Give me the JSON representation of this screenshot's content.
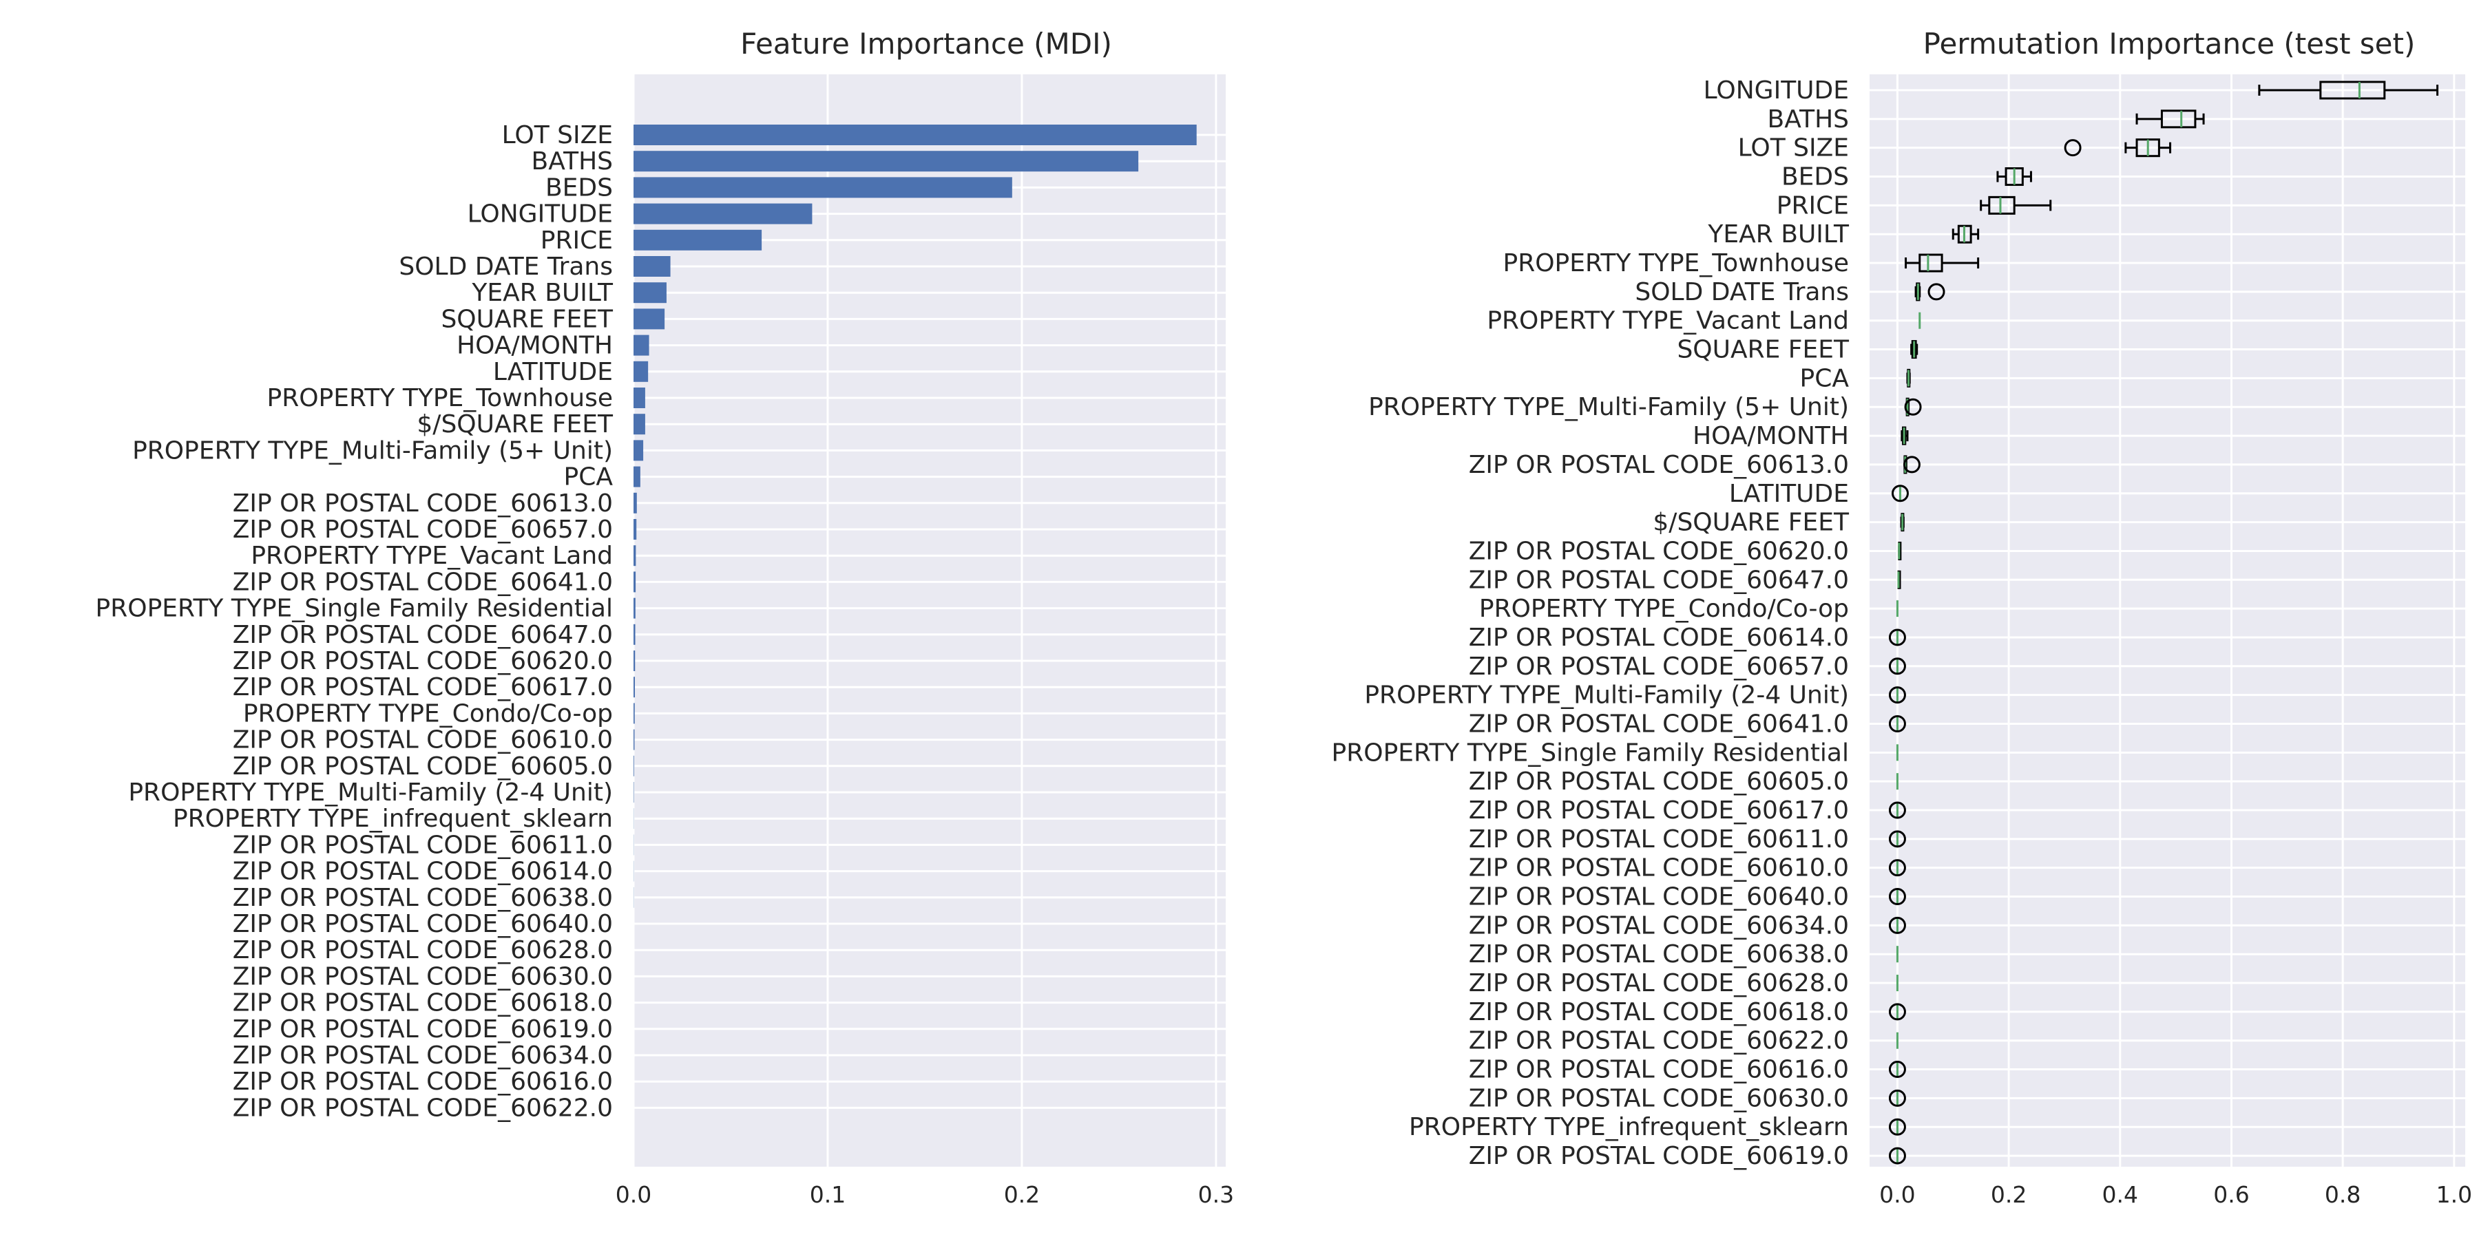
{
  "chart_data": [
    {
      "type": "bar",
      "orientation": "horizontal",
      "title": "Feature Importance (MDI)",
      "xlabel": "",
      "ylabel": "",
      "xlim": [
        0,
        0.305
      ],
      "xticks": [
        "0.0",
        "0.1",
        "0.2",
        "0.3"
      ],
      "grid": true,
      "bar_color": "#4c72b0",
      "background": "#eaeaf2",
      "categories": [
        "LOT SIZE",
        "BATHS",
        "BEDS",
        "LONGITUDE",
        "PRICE",
        "SOLD DATE Trans",
        "YEAR BUILT",
        "SQUARE FEET",
        "HOA/MONTH",
        "LATITUDE",
        "PROPERTY TYPE_Townhouse",
        "$/SQUARE FEET",
        "PROPERTY TYPE_Multi-Family (5+ Unit)",
        "PCA",
        "ZIP OR POSTAL CODE_60613.0",
        "ZIP OR POSTAL CODE_60657.0",
        "PROPERTY TYPE_Vacant Land",
        "ZIP OR POSTAL CODE_60641.0",
        "PROPERTY TYPE_Single Family Residential",
        "ZIP OR POSTAL CODE_60647.0",
        "ZIP OR POSTAL CODE_60620.0",
        "ZIP OR POSTAL CODE_60617.0",
        "PROPERTY TYPE_Condo/Co-op",
        "ZIP OR POSTAL CODE_60610.0",
        "ZIP OR POSTAL CODE_60605.0",
        "PROPERTY TYPE_Multi-Family (2-4 Unit)",
        "PROPERTY TYPE_infrequent_sklearn",
        "ZIP OR POSTAL CODE_60611.0",
        "ZIP OR POSTAL CODE_60614.0",
        "ZIP OR POSTAL CODE_60638.0",
        "ZIP OR POSTAL CODE_60640.0",
        "ZIP OR POSTAL CODE_60628.0",
        "ZIP OR POSTAL CODE_60630.0",
        "ZIP OR POSTAL CODE_60618.0",
        "ZIP OR POSTAL CODE_60619.0",
        "ZIP OR POSTAL CODE_60634.0",
        "ZIP OR POSTAL CODE_60616.0",
        "ZIP OR POSTAL CODE_60622.0"
      ],
      "values": [
        0.29,
        0.26,
        0.195,
        0.092,
        0.066,
        0.019,
        0.017,
        0.016,
        0.008,
        0.0075,
        0.006,
        0.006,
        0.005,
        0.0035,
        0.0017,
        0.0015,
        0.0012,
        0.0011,
        0.001,
        0.0009,
        0.0008,
        0.0007,
        0.0006,
        0.0005,
        0.0003,
        0.0002,
        0.0001,
        0.0001,
        0.0001,
        0.0001,
        0.0,
        0.0,
        0.0,
        0.0,
        0.0,
        0.0,
        0.0,
        0.0
      ]
    },
    {
      "type": "boxplot",
      "orientation": "horizontal",
      "title": "Permutation Importance (test set)",
      "xlabel": "",
      "ylabel": "",
      "xlim": [
        -0.05,
        1.02
      ],
      "xticks": [
        "0.0",
        "0.2",
        "0.4",
        "0.6",
        "0.8",
        "1.0"
      ],
      "grid": true,
      "median_color": "#55a868",
      "background": "#eaeaf2",
      "categories": [
        "LONGITUDE",
        "BATHS",
        "LOT SIZE",
        "BEDS",
        "PRICE",
        "YEAR BUILT",
        "PROPERTY TYPE_Townhouse",
        "SOLD DATE Trans",
        "PROPERTY TYPE_Vacant Land",
        "SQUARE FEET",
        "PCA",
        "PROPERTY TYPE_Multi-Family (5+ Unit)",
        "HOA/MONTH",
        "ZIP OR POSTAL CODE_60613.0",
        "LATITUDE",
        "$/SQUARE FEET",
        "ZIP OR POSTAL CODE_60620.0",
        "ZIP OR POSTAL CODE_60647.0",
        "PROPERTY TYPE_Condo/Co-op",
        "ZIP OR POSTAL CODE_60614.0",
        "ZIP OR POSTAL CODE_60657.0",
        "PROPERTY TYPE_Multi-Family (2-4 Unit)",
        "ZIP OR POSTAL CODE_60641.0",
        "PROPERTY TYPE_Single Family Residential",
        "ZIP OR POSTAL CODE_60605.0",
        "ZIP OR POSTAL CODE_60617.0",
        "ZIP OR POSTAL CODE_60611.0",
        "ZIP OR POSTAL CODE_60610.0",
        "ZIP OR POSTAL CODE_60640.0",
        "ZIP OR POSTAL CODE_60634.0",
        "ZIP OR POSTAL CODE_60638.0",
        "ZIP OR POSTAL CODE_60628.0",
        "ZIP OR POSTAL CODE_60618.0",
        "ZIP OR POSTAL CODE_60622.0",
        "ZIP OR POSTAL CODE_60616.0",
        "ZIP OR POSTAL CODE_60630.0",
        "PROPERTY TYPE_infrequent_sklearn",
        "ZIP OR POSTAL CODE_60619.0"
      ],
      "boxes": [
        {
          "whislo": 0.65,
          "q1": 0.76,
          "med": 0.83,
          "q3": 0.875,
          "whishi": 0.97,
          "fliers": []
        },
        {
          "whislo": 0.43,
          "q1": 0.475,
          "med": 0.51,
          "q3": 0.535,
          "whishi": 0.55,
          "fliers": []
        },
        {
          "whislo": 0.41,
          "q1": 0.43,
          "med": 0.45,
          "q3": 0.47,
          "whishi": 0.49,
          "fliers": [
            0.315
          ]
        },
        {
          "whislo": 0.18,
          "q1": 0.195,
          "med": 0.21,
          "q3": 0.225,
          "whishi": 0.24,
          "fliers": []
        },
        {
          "whislo": 0.15,
          "q1": 0.165,
          "med": 0.185,
          "q3": 0.21,
          "whishi": 0.275,
          "fliers": []
        },
        {
          "whislo": 0.1,
          "q1": 0.11,
          "med": 0.12,
          "q3": 0.132,
          "whishi": 0.145,
          "fliers": []
        },
        {
          "whislo": 0.015,
          "q1": 0.04,
          "med": 0.055,
          "q3": 0.08,
          "whishi": 0.145,
          "fliers": []
        },
        {
          "whislo": 0.033,
          "q1": 0.035,
          "med": 0.037,
          "q3": 0.039,
          "whishi": 0.04,
          "fliers": [
            0.07
          ]
        },
        {
          "whislo": 0.04,
          "q1": 0.04,
          "med": 0.04,
          "q3": 0.04,
          "whishi": 0.04,
          "fliers": []
        },
        {
          "whislo": 0.025,
          "q1": 0.027,
          "med": 0.03,
          "q3": 0.033,
          "whishi": 0.035,
          "fliers": []
        },
        {
          "whislo": 0.018,
          "q1": 0.019,
          "med": 0.02,
          "q3": 0.021,
          "whishi": 0.022,
          "fliers": []
        },
        {
          "whislo": 0.017,
          "q1": 0.017,
          "med": 0.018,
          "q3": 0.019,
          "whishi": 0.02,
          "fliers": [
            0.028
          ]
        },
        {
          "whislo": 0.008,
          "q1": 0.01,
          "med": 0.012,
          "q3": 0.014,
          "whishi": 0.018,
          "fliers": []
        },
        {
          "whislo": 0.013,
          "q1": 0.013,
          "med": 0.014,
          "q3": 0.015,
          "whishi": 0.016,
          "fliers": [
            0.026
          ]
        },
        {
          "whislo": 0.005,
          "q1": 0.005,
          "med": 0.005,
          "q3": 0.005,
          "whishi": 0.005,
          "fliers": [
            0.005
          ]
        },
        {
          "whislo": 0.007,
          "q1": 0.008,
          "med": 0.009,
          "q3": 0.01,
          "whishi": 0.011,
          "fliers": []
        },
        {
          "whislo": 0.003,
          "q1": 0.003,
          "med": 0.003,
          "q3": 0.003,
          "whishi": 0.004,
          "fliers": []
        },
        {
          "whislo": 0.002,
          "q1": 0.002,
          "med": 0.002,
          "q3": 0.002,
          "whishi": 0.003,
          "fliers": []
        },
        {
          "whislo": 0.0,
          "q1": 0.0,
          "med": 0.0,
          "q3": 0.0,
          "whishi": 0.0,
          "fliers": []
        },
        {
          "whislo": 0.0,
          "q1": 0.0,
          "med": 0.0,
          "q3": 0.0,
          "whishi": 0.0,
          "fliers": [
            0.0
          ]
        },
        {
          "whislo": 0.0,
          "q1": 0.0,
          "med": 0.0,
          "q3": 0.0,
          "whishi": 0.0,
          "fliers": [
            0.0
          ]
        },
        {
          "whislo": 0.0,
          "q1": 0.0,
          "med": 0.0,
          "q3": 0.0,
          "whishi": 0.0,
          "fliers": [
            0.0
          ]
        },
        {
          "whislo": 0.0,
          "q1": 0.0,
          "med": 0.0,
          "q3": 0.0,
          "whishi": 0.0,
          "fliers": [
            0.0
          ]
        },
        {
          "whislo": 0.0,
          "q1": 0.0,
          "med": 0.0,
          "q3": 0.0,
          "whishi": 0.0,
          "fliers": []
        },
        {
          "whislo": 0.0,
          "q1": 0.0,
          "med": 0.0,
          "q3": 0.0,
          "whishi": 0.0,
          "fliers": []
        },
        {
          "whislo": 0.0,
          "q1": 0.0,
          "med": 0.0,
          "q3": 0.0,
          "whishi": 0.0,
          "fliers": [
            0.0
          ]
        },
        {
          "whislo": 0.0,
          "q1": 0.0,
          "med": 0.0,
          "q3": 0.0,
          "whishi": 0.0,
          "fliers": [
            0.0
          ]
        },
        {
          "whislo": 0.0,
          "q1": 0.0,
          "med": 0.0,
          "q3": 0.0,
          "whishi": 0.0,
          "fliers": [
            0.0
          ]
        },
        {
          "whislo": 0.0,
          "q1": 0.0,
          "med": 0.0,
          "q3": 0.0,
          "whishi": 0.0,
          "fliers": [
            0.0
          ]
        },
        {
          "whislo": 0.0,
          "q1": 0.0,
          "med": 0.0,
          "q3": 0.0,
          "whishi": 0.0,
          "fliers": [
            0.0
          ]
        },
        {
          "whislo": 0.0,
          "q1": 0.0,
          "med": 0.0,
          "q3": 0.0,
          "whishi": 0.0,
          "fliers": []
        },
        {
          "whislo": 0.0,
          "q1": 0.0,
          "med": 0.0,
          "q3": 0.0,
          "whishi": 0.0,
          "fliers": []
        },
        {
          "whislo": 0.0,
          "q1": 0.0,
          "med": 0.0,
          "q3": 0.0,
          "whishi": 0.0,
          "fliers": [
            0.0
          ]
        },
        {
          "whislo": 0.0,
          "q1": 0.0,
          "med": 0.0,
          "q3": 0.0,
          "whishi": 0.0,
          "fliers": []
        },
        {
          "whislo": 0.0,
          "q1": 0.0,
          "med": 0.0,
          "q3": 0.0,
          "whishi": 0.0,
          "fliers": [
            0.0
          ]
        },
        {
          "whislo": 0.0,
          "q1": 0.0,
          "med": 0.0,
          "q3": 0.0,
          "whishi": 0.0,
          "fliers": [
            0.0
          ]
        },
        {
          "whislo": 0.0,
          "q1": 0.0,
          "med": 0.0,
          "q3": 0.0,
          "whishi": 0.0,
          "fliers": [
            0.0
          ]
        },
        {
          "whislo": 0.0,
          "q1": 0.0,
          "med": 0.0,
          "q3": 0.0,
          "whishi": 0.0,
          "fliers": [
            0.0
          ]
        }
      ]
    }
  ]
}
